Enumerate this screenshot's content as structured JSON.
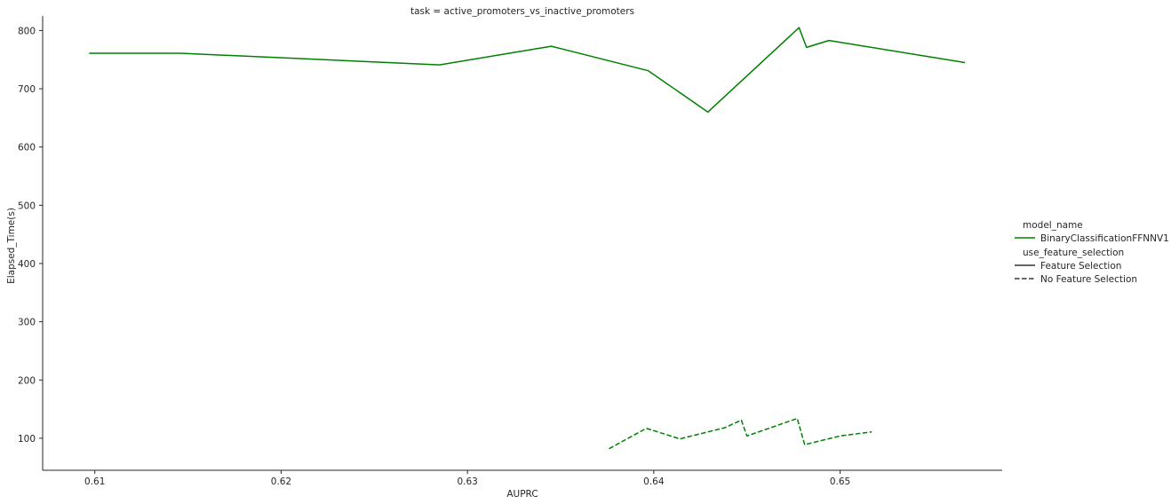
{
  "chart_data": {
    "type": "line",
    "title": "task = active_promoters_vs_inactive_promoters",
    "xlabel": "AUPRC",
    "ylabel": "Elapsed_Time(s)",
    "xlim": [
      0.6072,
      0.6587
    ],
    "ylim": [
      45,
      825
    ],
    "x_ticks": [
      0.61,
      0.62,
      0.63,
      0.64,
      0.65
    ],
    "y_ticks": [
      100,
      200,
      300,
      400,
      500,
      600,
      700,
      800
    ],
    "grid": false,
    "legend": {
      "placement": "center-right",
      "hue_title": "model_name",
      "hue_entries": [
        {
          "label": "BinaryClassificationFFNNV1",
          "color": "#008000"
        }
      ],
      "style_title": "use_feature_selection",
      "style_entries": [
        {
          "label": "Feature Selection",
          "dash": "solid"
        },
        {
          "label": "No Feature Selection",
          "dash": "dashed"
        }
      ]
    },
    "series": [
      {
        "model_name": "BinaryClassificationFFNNV1",
        "use_feature_selection": "Feature Selection",
        "color": "#008000",
        "dash": "solid",
        "x": [
          0.6097,
          0.6146,
          0.6285,
          0.6345,
          0.6397,
          0.6429,
          0.6478,
          0.6482,
          0.6494,
          0.6567
        ],
        "y": [
          761,
          761,
          741,
          773,
          731,
          660,
          805,
          771,
          783,
          745
        ]
      },
      {
        "model_name": "BinaryClassificationFFNNV1",
        "use_feature_selection": "No Feature Selection",
        "color": "#008000",
        "dash": "dashed",
        "x": [
          0.6376,
          0.6396,
          0.6414,
          0.6438,
          0.6447,
          0.645,
          0.6477,
          0.6481,
          0.65,
          0.6517
        ],
        "y": [
          82,
          117,
          99,
          118,
          131,
          104,
          134,
          89,
          104,
          111
        ]
      }
    ]
  }
}
